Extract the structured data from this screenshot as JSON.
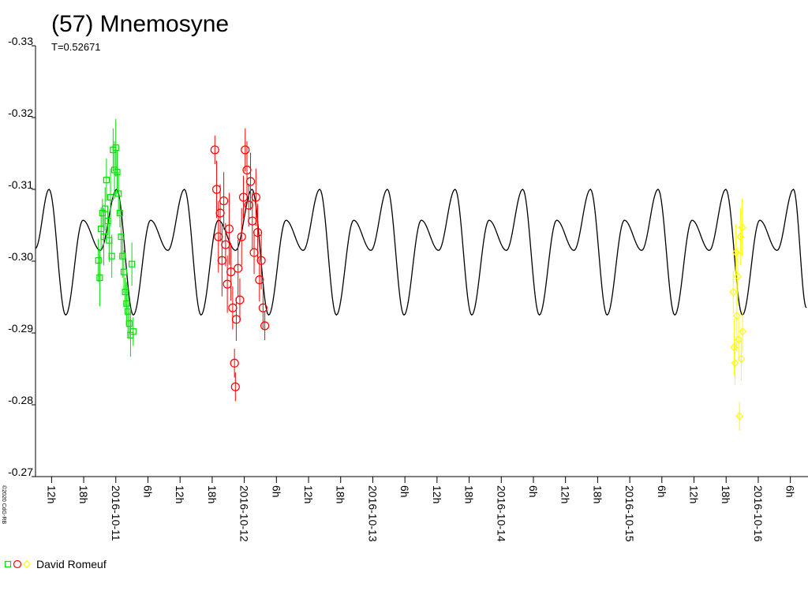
{
  "chart_data": {
    "type": "lightcurve",
    "title": "(57) Mnemosyne",
    "subtitle": "T=0.52671",
    "copyright": "©2020 CdG-RB",
    "observer": "David Romeuf",
    "ylim": [
      -0.27,
      -0.33
    ],
    "yticks": [
      -0.33,
      -0.32,
      -0.31,
      {
        "value": -0.3,
        "label": "-0.30"
      },
      -0.29,
      -0.28,
      -0.27
    ],
    "xlim": [
      "2016-10-10T09:00",
      "2016-10-16T09:00"
    ],
    "xticks": [
      {
        "value": "2016-10-10T12:00",
        "label": "12h"
      },
      {
        "value": "2016-10-10T18:00",
        "label": "18h"
      },
      {
        "value": "2016-10-11T00:00",
        "label": "2016-10-11"
      },
      {
        "value": "2016-10-11T06:00",
        "label": "6h"
      },
      {
        "value": "2016-10-11T12:00",
        "label": "12h"
      },
      {
        "value": "2016-10-11T18:00",
        "label": "18h"
      },
      {
        "value": "2016-10-12T00:00",
        "label": "2016-10-12"
      },
      {
        "value": "2016-10-12T06:00",
        "label": "6h"
      },
      {
        "value": "2016-10-12T12:00",
        "label": "12h"
      },
      {
        "value": "2016-10-12T18:00",
        "label": "18h"
      },
      {
        "value": "2016-10-13T00:00",
        "label": "2016-10-13"
      },
      {
        "value": "2016-10-13T06:00",
        "label": "6h"
      },
      {
        "value": "2016-10-13T12:00",
        "label": "12h"
      },
      {
        "value": "2016-10-13T18:00",
        "label": "18h"
      },
      {
        "value": "2016-10-14T00:00",
        "label": "2016-10-14"
      },
      {
        "value": "2016-10-14T06:00",
        "label": "6h"
      },
      {
        "value": "2016-10-14T12:00",
        "label": "12h"
      },
      {
        "value": "2016-10-14T18:00",
        "label": "18h"
      },
      {
        "value": "2016-10-15T00:00",
        "label": "2016-10-15"
      },
      {
        "value": "2016-10-15T06:00",
        "label": "6h"
      },
      {
        "value": "2016-10-15T12:00",
        "label": "12h"
      },
      {
        "value": "2016-10-15T18:00",
        "label": "18h"
      },
      {
        "value": "2016-10-16T00:00",
        "label": "2016-10-16"
      },
      {
        "value": "2016-10-16T06:00",
        "label": "6h"
      }
    ],
    "model": {
      "color": "#000000",
      "x": [
        "2016-10-10T09:00",
        "2016-10-10T11:32",
        "2016-10-10T14:38",
        "2016-10-10T17:52",
        "2016-10-10T21:06",
        "2016-10-11T00:10",
        "2016-10-11T03:16",
        "2016-10-11T06:30",
        "2016-10-11T09:44",
        "2016-10-11T12:49",
        "2016-10-11T15:55",
        "2016-10-11T19:09",
        "2016-10-11T22:23",
        "2016-10-12T01:27",
        "2016-10-12T04:33",
        "2016-10-12T07:47",
        "2016-10-12T11:01",
        "2016-10-12T14:06",
        "2016-10-12T17:12",
        "2016-10-12T20:26",
        "2016-10-12T23:40",
        "2016-10-13T02:44",
        "2016-10-13T05:50",
        "2016-10-13T09:04",
        "2016-10-13T12:18",
        "2016-10-13T15:23",
        "2016-10-13T18:29",
        "2016-10-13T21:43",
        "2016-10-14T00:57",
        "2016-10-14T04:01",
        "2016-10-14T07:07",
        "2016-10-14T10:21",
        "2016-10-14T13:35",
        "2016-10-14T16:40",
        "2016-10-14T19:46",
        "2016-10-14T23:00",
        "2016-10-15T02:14",
        "2016-10-15T05:18",
        "2016-10-15T08:24",
        "2016-10-15T11:38",
        "2016-10-15T14:52",
        "2016-10-15T17:57",
        "2016-10-15T21:03",
        "2016-10-16T00:17",
        "2016-10-16T03:31",
        "2016-10-16T06:35",
        "2016-10-16T09:00"
      ],
      "values": [
        -0.3018,
        -0.31,
        -0.2925,
        -0.3057,
        -0.3015,
        -0.31,
        -0.2925,
        -0.3057,
        -0.3015,
        -0.31,
        -0.2925,
        -0.3057,
        -0.3015,
        -0.31,
        -0.2925,
        -0.3057,
        -0.3015,
        -0.31,
        -0.2925,
        -0.3057,
        -0.3015,
        -0.31,
        -0.2925,
        -0.3057,
        -0.3015,
        -0.31,
        -0.2925,
        -0.3057,
        -0.3015,
        -0.31,
        -0.2925,
        -0.3057,
        -0.3015,
        -0.31,
        -0.2925,
        -0.3057,
        -0.3015,
        -0.31,
        -0.2925,
        -0.3057,
        -0.3015,
        -0.31,
        -0.2925,
        -0.3057,
        -0.3015,
        -0.31,
        -0.2935
      ]
    },
    "series": [
      {
        "color": "#00e000",
        "marker": "square",
        "x": [
          "2016-10-10T20:45",
          "2016-10-10T21:00",
          "2016-10-10T21:15",
          "2016-10-10T21:30",
          "2016-10-10T21:45",
          "2016-10-10T22:00",
          "2016-10-10T22:15",
          "2016-10-10T22:30",
          "2016-10-10T22:45",
          "2016-10-10T23:00",
          "2016-10-10T23:15",
          "2016-10-10T23:30",
          "2016-10-10T23:45",
          "2016-10-11T00:00",
          "2016-10-11T00:15",
          "2016-10-11T00:30",
          "2016-10-11T00:45",
          "2016-10-11T01:00",
          "2016-10-11T01:15",
          "2016-10-11T01:30",
          "2016-10-11T01:45",
          "2016-10-11T02:00",
          "2016-10-11T02:15",
          "2016-10-11T02:30",
          "2016-10-11T02:45",
          "2016-10-11T03:00",
          "2016-10-11T03:15"
        ],
        "values": [
          -0.3001,
          -0.2977,
          -0.3045,
          -0.3067,
          -0.3034,
          -0.3073,
          -0.3113,
          -0.3056,
          -0.3029,
          -0.3089,
          -0.3007,
          -0.3155,
          -0.3127,
          -0.3158,
          -0.3124,
          -0.3094,
          -0.3067,
          -0.3034,
          -0.3007,
          -0.2985,
          -0.2957,
          -0.2941,
          -0.293,
          -0.2913,
          -0.2897,
          -0.2996,
          -0.2902
        ],
        "errors": [
          0.003,
          0.004,
          0.003,
          0.002,
          0.004,
          0.003,
          0.003,
          0.002,
          0.003,
          0.004,
          0.003,
          0.003,
          0.004,
          0.004,
          0.003,
          0.003,
          0.002,
          0.003,
          0.003,
          0.003,
          0.002,
          0.003,
          0.003,
          0.002,
          0.003,
          0.003,
          0.002
        ]
      },
      {
        "color": "#ff0000",
        "marker": "circle",
        "x": [
          "2016-10-11T18:30",
          "2016-10-11T18:50",
          "2016-10-11T19:10",
          "2016-10-11T19:30",
          "2016-10-11T19:50",
          "2016-10-11T20:10",
          "2016-10-11T20:30",
          "2016-10-11T20:50",
          "2016-10-11T21:10",
          "2016-10-11T21:30",
          "2016-10-11T21:50",
          "2016-10-11T22:10",
          "2016-10-11T22:20",
          "2016-10-11T22:30",
          "2016-10-11T22:50",
          "2016-10-11T23:10",
          "2016-10-11T23:30",
          "2016-10-11T23:50",
          "2016-10-12T00:10",
          "2016-10-12T00:30",
          "2016-10-12T00:50",
          "2016-10-12T01:10",
          "2016-10-12T01:30",
          "2016-10-12T01:50",
          "2016-10-12T02:10",
          "2016-10-12T02:30",
          "2016-10-12T02:50",
          "2016-10-12T03:10",
          "2016-10-12T03:30",
          "2016-10-12T03:50"
        ],
        "values": [
          -0.3155,
          -0.31,
          -0.3034,
          -0.3067,
          -0.3001,
          -0.3084,
          -0.3023,
          -0.2968,
          -0.3045,
          -0.2985,
          -0.2935,
          -0.2858,
          -0.2825,
          -0.2919,
          -0.299,
          -0.2946,
          -0.3034,
          -0.3089,
          -0.3155,
          -0.3127,
          -0.3078,
          -0.3111,
          -0.3056,
          -0.3012,
          -0.3089,
          -0.304,
          -0.2974,
          -0.3001,
          -0.2935,
          -0.291
        ],
        "errors": [
          0.002,
          0.004,
          0.005,
          0.004,
          0.005,
          0.004,
          0.003,
          0.004,
          0.005,
          0.004,
          0.003,
          0.002,
          0.002,
          0.003,
          0.004,
          0.003,
          0.004,
          0.003,
          0.003,
          0.004,
          0.003,
          0.004,
          0.004,
          0.003,
          0.004,
          0.004,
          0.003,
          0.004,
          0.003,
          0.002
        ]
      },
      {
        "color": "#ffff00",
        "marker": "diamond",
        "x": [
          "2016-10-15T19:20",
          "2016-10-15T19:30",
          "2016-10-15T19:40",
          "2016-10-15T19:50",
          "2016-10-15T20:00",
          "2016-10-15T20:10",
          "2016-10-15T20:20",
          "2016-10-15T20:30",
          "2016-10-15T20:40",
          "2016-10-15T20:50",
          "2016-10-15T21:00",
          "2016-10-15T21:05"
        ],
        "values": [
          -0.2957,
          -0.288,
          -0.2858,
          -0.3012,
          -0.2924,
          -0.2979,
          -0.2891,
          -0.2784,
          -0.3034,
          -0.2864,
          -0.3047,
          -0.2902
        ],
        "errors": [
          0.003,
          0.004,
          0.003,
          0.004,
          0.005,
          0.004,
          0.003,
          0.002,
          0.004,
          0.003,
          0.004,
          0.003
        ]
      }
    ]
  }
}
